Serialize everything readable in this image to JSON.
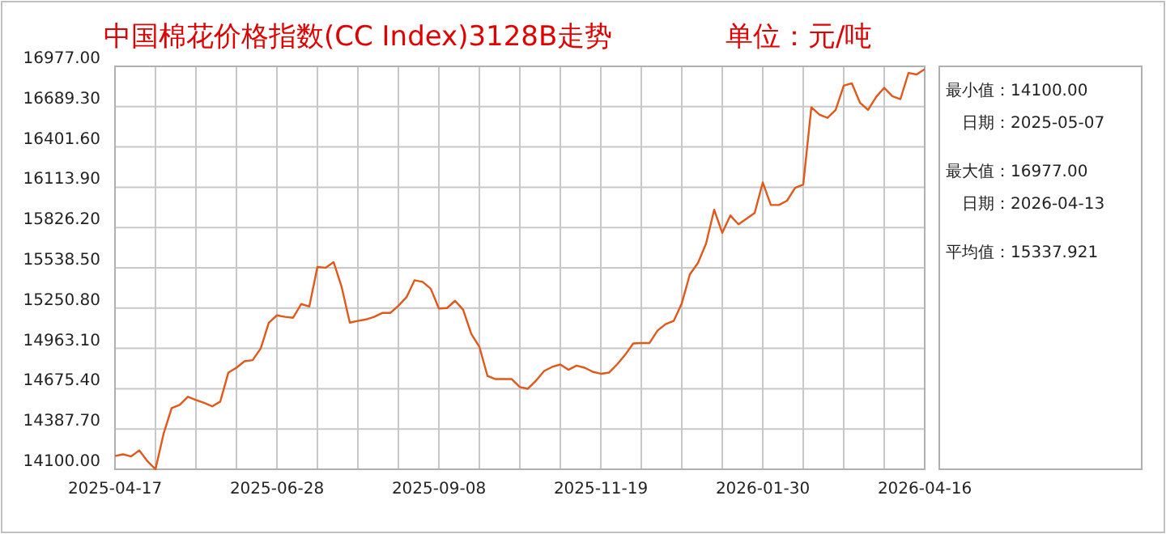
{
  "chart_data": {
    "type": "line",
    "title": "中国棉花价格指数(CC Index)3128B走势",
    "subtitle": "单位：元/吨",
    "categories": [
      "2025-04-17",
      null,
      null,
      null,
      null,
      null,
      null,
      null,
      null,
      null,
      null,
      null,
      null,
      null,
      null,
      null,
      null,
      null,
      null,
      null,
      "2025-06-28",
      null,
      null,
      null,
      null,
      null,
      null,
      null,
      null,
      null,
      null,
      null,
      null,
      null,
      null,
      null,
      null,
      null,
      null,
      null,
      "2025-09-08",
      null,
      null,
      null,
      null,
      null,
      null,
      null,
      null,
      null,
      null,
      null,
      null,
      null,
      null,
      null,
      null,
      null,
      null,
      null,
      "2025-11-19",
      null,
      null,
      null,
      null,
      null,
      null,
      null,
      null,
      null,
      null,
      null,
      null,
      null,
      null,
      null,
      null,
      null,
      null,
      null,
      "2026-01-30",
      null,
      null,
      null,
      null,
      null,
      null,
      null,
      null,
      null,
      null,
      null,
      null,
      null,
      null,
      null,
      null,
      null,
      null,
      null,
      "2026-04-16"
    ],
    "series": [
      {
        "color": "#e0581a",
        "values": [
          14195,
          14207,
          14192,
          14235,
          14158,
          14100,
          14353,
          14537,
          14560,
          14618,
          14595,
          14575,
          14549,
          14583,
          14790,
          14825,
          14871,
          14879,
          14963,
          15147,
          15199,
          15188,
          15182,
          15280,
          15262,
          15544,
          15539,
          15579,
          15400,
          15147,
          15159,
          15170,
          15188,
          15216,
          15216,
          15268,
          15328,
          15450,
          15438,
          15389,
          15248,
          15251,
          15303,
          15239,
          15067,
          14975,
          14767,
          14744,
          14744,
          14744,
          14687,
          14675,
          14733,
          14802,
          14831,
          14848,
          14810,
          14840,
          14825,
          14796,
          14782,
          14790,
          14848,
          14917,
          14998,
          15001,
          15001,
          15090,
          15136,
          15159,
          15285,
          15492,
          15573,
          15712,
          15953,
          15788,
          15912,
          15849,
          15889,
          15930,
          16148,
          15987,
          15987,
          16018,
          16110,
          16133,
          16684,
          16632,
          16609,
          16666,
          16839,
          16856,
          16718,
          16666,
          16758,
          16824,
          16764,
          16743,
          16930,
          16919,
          16957
        ]
      }
    ],
    "ylim": [
      14100,
      16977
    ],
    "yticks": [
      {
        "value": 14100,
        "label": "14100.00"
      },
      {
        "value": 14387.7,
        "label": "14387.70"
      },
      {
        "value": 14675.4,
        "label": "14675.40"
      },
      {
        "value": 14963.1,
        "label": "14963.10"
      },
      {
        "value": 15250.8,
        "label": "15250.80"
      },
      {
        "value": 15538.5,
        "label": "15538.50"
      },
      {
        "value": 15826.2,
        "label": "15826.20"
      },
      {
        "value": 16113.9,
        "label": "16113.90"
      },
      {
        "value": 16401.6,
        "label": "16401.60"
      },
      {
        "value": 16689.3,
        "label": "16689.30"
      },
      {
        "value": 16977,
        "label": "16977.00"
      }
    ],
    "grid": true,
    "marker": "none",
    "line_style": "solid",
    "annotations": [
      "最小值：14100.00",
      "日期：2025-05-07",
      "最大值：16977.00",
      "日期：2026-04-13",
      "平均值：15337.921"
    ]
  }
}
